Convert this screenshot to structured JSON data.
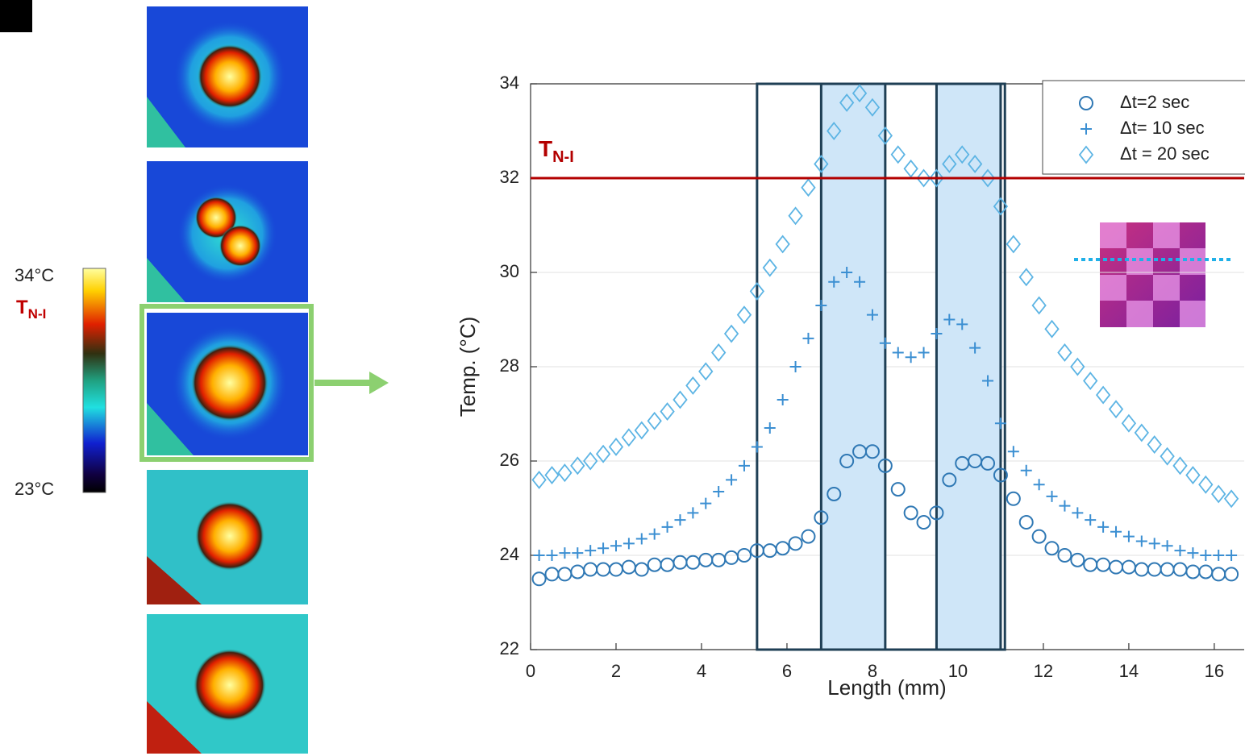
{
  "chart_data": {
    "type": "scatter",
    "xlabel": "Length (mm)",
    "ylabel": "Temp. (°C)",
    "xlim": [
      0,
      16.7
    ],
    "ylim": [
      22,
      34
    ],
    "xticks": [
      0,
      2,
      4,
      6,
      8,
      10,
      12,
      14,
      16
    ],
    "yticks": [
      22,
      24,
      26,
      28,
      30,
      32,
      34
    ],
    "grid": true,
    "legend": "upper right",
    "x": [
      0.2,
      0.5,
      0.8,
      1.1,
      1.4,
      1.7,
      2.0,
      2.3,
      2.6,
      2.9,
      3.2,
      3.5,
      3.8,
      4.1,
      4.4,
      4.7,
      5.0,
      5.3,
      5.6,
      5.9,
      6.2,
      6.5,
      6.8,
      7.1,
      7.4,
      7.7,
      8.0,
      8.3,
      8.6,
      8.9,
      9.2,
      9.5,
      9.8,
      10.1,
      10.4,
      10.7,
      11.0,
      11.3,
      11.6,
      11.9,
      12.2,
      12.5,
      12.8,
      13.1,
      13.4,
      13.7,
      14.0,
      14.3,
      14.6,
      14.9,
      15.2,
      15.5,
      15.8,
      16.1,
      16.4
    ],
    "series": [
      {
        "name": "Δt=2 sec",
        "marker": "o",
        "color": "#2f78b4",
        "values": [
          23.5,
          23.6,
          23.6,
          23.65,
          23.7,
          23.7,
          23.7,
          23.75,
          23.7,
          23.8,
          23.8,
          23.85,
          23.85,
          23.9,
          23.9,
          23.95,
          24.0,
          24.1,
          24.1,
          24.15,
          24.25,
          24.4,
          24.8,
          25.3,
          26.0,
          26.2,
          26.2,
          25.9,
          25.4,
          24.9,
          24.7,
          24.9,
          25.6,
          25.95,
          26.0,
          25.95,
          25.7,
          25.2,
          24.7,
          24.4,
          24.15,
          24.0,
          23.9,
          23.8,
          23.8,
          23.75,
          23.75,
          23.7,
          23.7,
          23.7,
          23.7,
          23.65,
          23.65,
          23.6,
          23.6
        ]
      },
      {
        "name": "Δt= 10 sec",
        "marker": "+",
        "color": "#3b8fd2",
        "values": [
          24.0,
          24.0,
          24.05,
          24.05,
          24.1,
          24.15,
          24.2,
          24.25,
          24.35,
          24.45,
          24.6,
          24.75,
          24.9,
          25.1,
          25.35,
          25.6,
          25.9,
          26.3,
          26.7,
          27.3,
          28.0,
          28.6,
          29.3,
          29.8,
          30.0,
          29.8,
          29.1,
          28.5,
          28.3,
          28.2,
          28.3,
          28.7,
          29.0,
          28.9,
          28.4,
          27.7,
          26.8,
          26.2,
          25.8,
          25.5,
          25.25,
          25.05,
          24.9,
          24.75,
          24.6,
          24.5,
          24.4,
          24.3,
          24.25,
          24.2,
          24.1,
          24.05,
          24.0,
          24.0,
          24.0
        ]
      },
      {
        "name": "Δt = 20 sec",
        "marker": "d",
        "color": "#5cb4e4",
        "values": [
          25.6,
          25.7,
          25.75,
          25.9,
          26.0,
          26.15,
          26.3,
          26.5,
          26.65,
          26.85,
          27.05,
          27.3,
          27.6,
          27.9,
          28.3,
          28.7,
          29.1,
          29.6,
          30.1,
          30.6,
          31.2,
          31.8,
          32.3,
          33.0,
          33.6,
          33.8,
          33.5,
          32.9,
          32.5,
          32.2,
          32.0,
          32.0,
          32.3,
          32.5,
          32.3,
          32.0,
          31.4,
          30.6,
          29.9,
          29.3,
          28.8,
          28.3,
          28.0,
          27.7,
          27.4,
          27.1,
          26.8,
          26.6,
          26.35,
          26.1,
          25.9,
          25.7,
          25.5,
          25.3,
          25.2
        ]
      }
    ],
    "hline": {
      "value": 32,
      "label": "T",
      "sublabel": "N-I",
      "color": "#b30000"
    },
    "outline_region": [
      5.3,
      11.1
    ],
    "shaded_regions": [
      [
        6.8,
        8.3
      ],
      [
        9.5,
        11.0
      ]
    ],
    "colorbar": {
      "max_label": "34°C",
      "marker_label": "T",
      "marker_sublabel": "N-I",
      "min_label": "23°C"
    }
  }
}
